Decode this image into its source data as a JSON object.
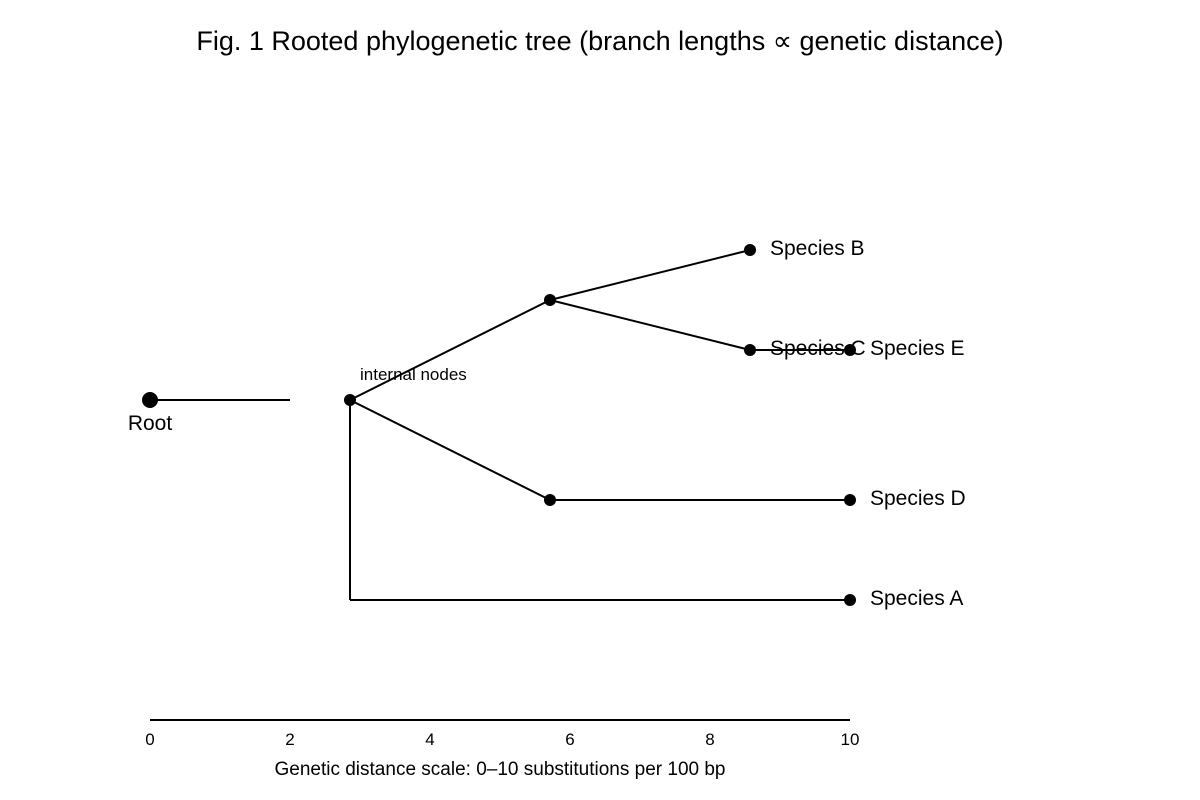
{
  "figure": {
    "title": "Fig. 1 Rooted phylogenetic tree (branch lengths ∝ genetic distance)",
    "root_label": "Root",
    "annotation": "internal nodes",
    "caption": "Genetic distance scale: 0–10 substitutions per 100 bp",
    "colors": {
      "ink": "#000000",
      "background": "#ffffff"
    }
  },
  "tree": {
    "leaves": [
      {
        "id": "B",
        "label": "Species B"
      },
      {
        "id": "C",
        "label": "Species C"
      },
      {
        "id": "E",
        "label": "Species E"
      },
      {
        "id": "D",
        "label": "Species D"
      },
      {
        "id": "A",
        "label": "Species A"
      }
    ]
  },
  "scale": {
    "min": 0,
    "max": 10,
    "ticks": [
      "0",
      "2",
      "4",
      "6",
      "8",
      "10"
    ]
  }
}
